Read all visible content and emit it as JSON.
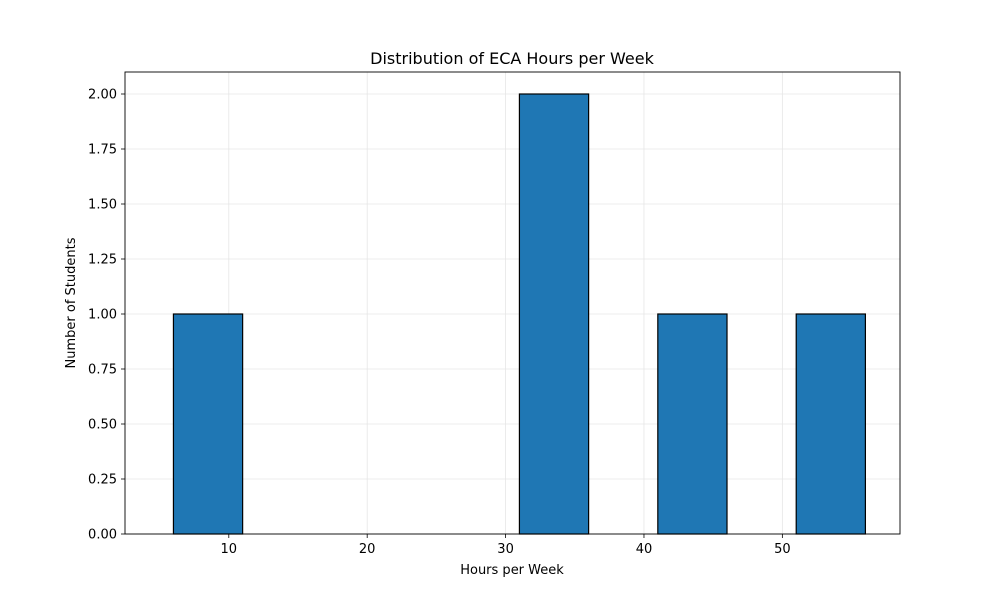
{
  "chart_data": {
    "type": "bar",
    "title": "Distribution of ECA Hours per Week",
    "xlabel": "Hours per Week",
    "ylabel": "Number of Students",
    "xlim": [
      2.5,
      58.5
    ],
    "ylim": [
      0,
      2.1
    ],
    "xticks": [
      10,
      20,
      30,
      40,
      50
    ],
    "xtick_labels": [
      "10",
      "20",
      "30",
      "40",
      "50"
    ],
    "yticks": [
      0,
      0.25,
      0.5,
      0.75,
      1.0,
      1.25,
      1.5,
      1.75,
      2.0
    ],
    "ytick_labels": [
      "0.00",
      "0.25",
      "0.50",
      "0.75",
      "1.00",
      "1.25",
      "1.50",
      "1.75",
      "2.00"
    ],
    "grid": true,
    "bar_color": "#1f77b4",
    "edge_color": "#000000",
    "bins": [
      {
        "x_start": 6,
        "x_end": 11,
        "count": 1
      },
      {
        "x_start": 31,
        "x_end": 36,
        "count": 2
      },
      {
        "x_start": 41,
        "x_end": 46,
        "count": 1
      },
      {
        "x_start": 51,
        "x_end": 56,
        "count": 1
      }
    ]
  }
}
